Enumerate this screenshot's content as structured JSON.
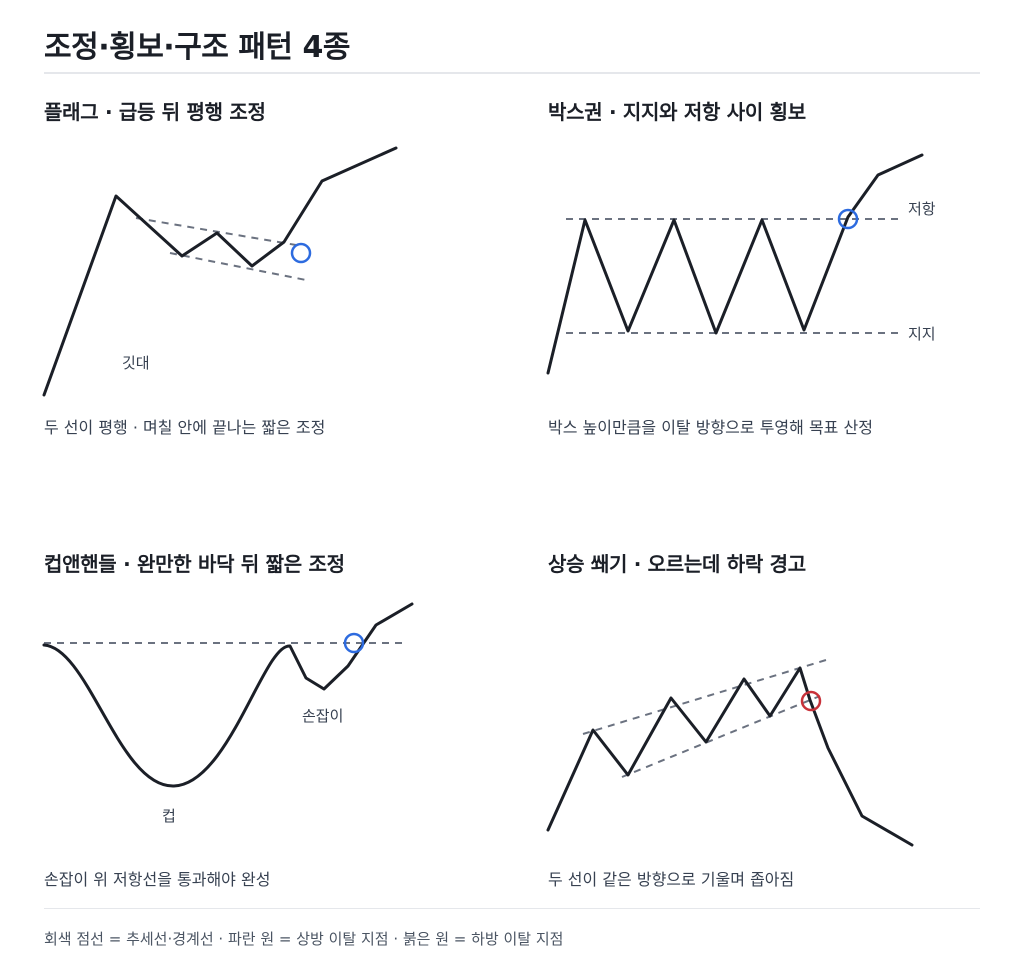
{
  "title": "조정·횡보·구조 패턴 4종",
  "panels": {
    "flag": {
      "title": "플래그 · 급등 뒤 평행 조정",
      "label_pole": "깃대",
      "caption": "두 선이 평행 · 며칠 안에 끝나는 짧은 조정"
    },
    "box": {
      "title": "박스권 · 지지와 저항 사이 횡보",
      "label_resistance": "저항",
      "label_support": "지지",
      "caption": "박스 높이만큼을 이탈 방향으로 투영해 목표 산정"
    },
    "cup": {
      "title": "컵앤핸들 · 완만한 바닥 뒤 짧은 조정",
      "label_handle": "손잡이",
      "label_cup": "컵",
      "caption": "손잡이 위 저항선을 통과해야 완성"
    },
    "wedge": {
      "title": "상승 쐐기 · 오르는데 하락 경고",
      "caption": "두 선이 같은 방향으로 기울며 좁아짐"
    }
  },
  "legend": "회색 점선 = 추세선·경계선 · 파란 원 = 상방 이탈 지점 · 붉은 원 = 하방 이탈 지점",
  "colors": {
    "line": "#1b1f27",
    "dashed": "#6b7280",
    "breakout_up": "#2d6bdf",
    "breakout_down": "#c8323a",
    "divider": "#e5e7eb"
  }
}
